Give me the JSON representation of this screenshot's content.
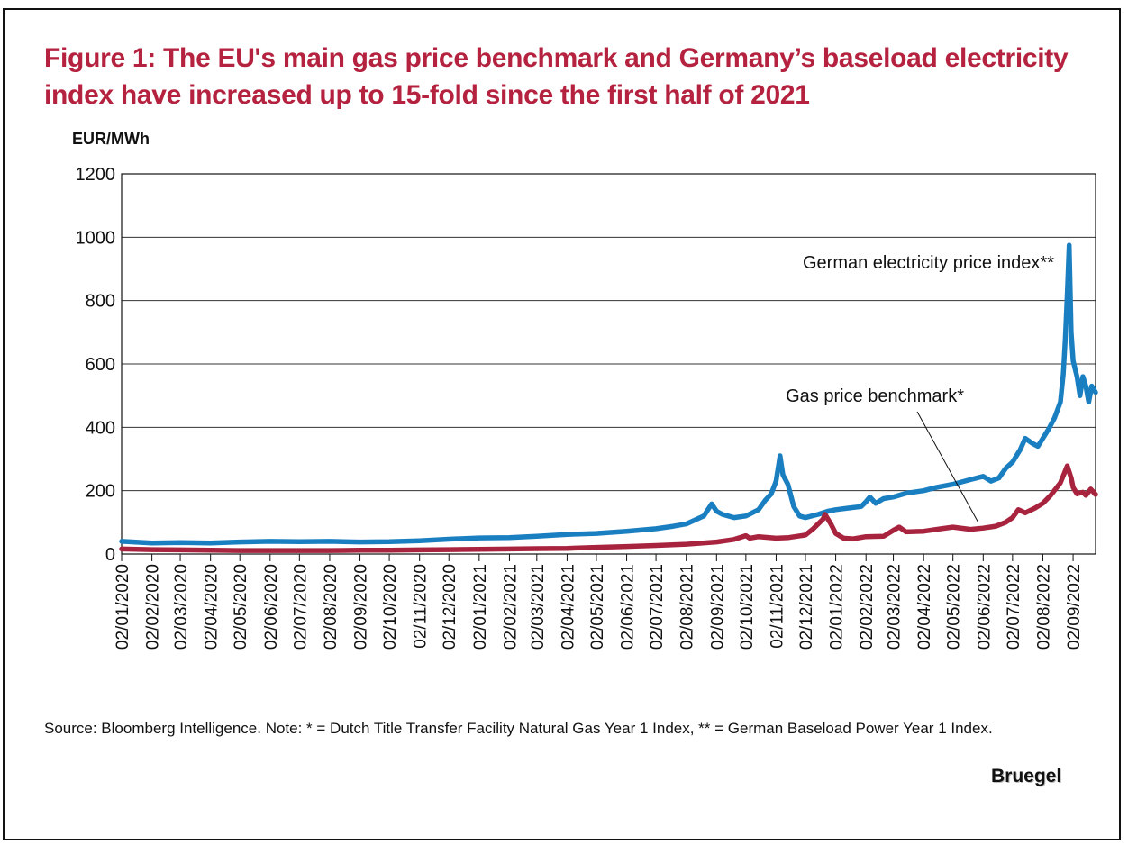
{
  "title": "Figure 1: The EU's main gas price benchmark and Germany’s baseload electricity index have increased up to 15-fold since the first half of 2021",
  "unit_label": "EUR/MWh",
  "source_note": "Source: Bloomberg Intelligence. Note: * = Dutch Title Transfer Facility Natural Gas Year 1 Index, ** = German Baseload Power Year 1 Index.",
  "brand": "Bruegel",
  "chart_data": {
    "type": "line",
    "ylim": [
      0,
      1200
    ],
    "yticks": [
      0,
      200,
      400,
      600,
      800,
      1000,
      1200
    ],
    "grid": true,
    "xlim": [
      "2020-01-02",
      "2022-09-25"
    ],
    "xticks": [
      "02/01/2020",
      "02/02/2020",
      "02/03/2020",
      "02/04/2020",
      "02/05/2020",
      "02/06/2020",
      "02/07/2020",
      "02/08/2020",
      "02/09/2020",
      "02/10/2020",
      "02/11/2020",
      "02/12/2020",
      "02/01/2021",
      "02/02/2021",
      "02/03/2021",
      "02/04/2021",
      "02/05/2021",
      "02/06/2021",
      "02/07/2021",
      "02/08/2021",
      "02/09/2021",
      "02/10/2021",
      "02/11/2021",
      "02/12/2021",
      "02/01/2022",
      "02/02/2022",
      "02/03/2022",
      "02/04/2022",
      "02/05/2022",
      "02/06/2022",
      "02/07/2022",
      "02/08/2022",
      "02/09/2022"
    ],
    "series": [
      {
        "name": "German electricity price index**",
        "color": "#1a7fc1",
        "points": [
          [
            "2020-01-02",
            40
          ],
          [
            "2020-02-02",
            35
          ],
          [
            "2020-03-02",
            36
          ],
          [
            "2020-04-02",
            35
          ],
          [
            "2020-05-02",
            38
          ],
          [
            "2020-06-02",
            40
          ],
          [
            "2020-07-02",
            39
          ],
          [
            "2020-08-02",
            40
          ],
          [
            "2020-09-02",
            38
          ],
          [
            "2020-10-02",
            39
          ],
          [
            "2020-11-02",
            42
          ],
          [
            "2020-12-02",
            47
          ],
          [
            "2021-01-02",
            51
          ],
          [
            "2021-02-02",
            52
          ],
          [
            "2021-03-02",
            56
          ],
          [
            "2021-04-02",
            62
          ],
          [
            "2021-05-02",
            65
          ],
          [
            "2021-06-02",
            72
          ],
          [
            "2021-07-02",
            80
          ],
          [
            "2021-07-20",
            88
          ],
          [
            "2021-08-02",
            95
          ],
          [
            "2021-08-20",
            120
          ],
          [
            "2021-08-28",
            158
          ],
          [
            "2021-09-02",
            135
          ],
          [
            "2021-09-08",
            125
          ],
          [
            "2021-09-20",
            115
          ],
          [
            "2021-10-02",
            120
          ],
          [
            "2021-10-15",
            140
          ],
          [
            "2021-10-22",
            170
          ],
          [
            "2021-10-28",
            190
          ],
          [
            "2021-11-02",
            230
          ],
          [
            "2021-11-06",
            310
          ],
          [
            "2021-11-09",
            250
          ],
          [
            "2021-11-14",
            220
          ],
          [
            "2021-11-20",
            150
          ],
          [
            "2021-11-26",
            120
          ],
          [
            "2021-12-02",
            115
          ],
          [
            "2021-12-15",
            125
          ],
          [
            "2021-12-25",
            135
          ],
          [
            "2022-01-02",
            140
          ],
          [
            "2022-01-15",
            145
          ],
          [
            "2022-01-28",
            150
          ],
          [
            "2022-02-02",
            165
          ],
          [
            "2022-02-06",
            180
          ],
          [
            "2022-02-12",
            160
          ],
          [
            "2022-02-20",
            175
          ],
          [
            "2022-03-02",
            180
          ],
          [
            "2022-03-15",
            192
          ],
          [
            "2022-04-02",
            200
          ],
          [
            "2022-04-15",
            210
          ],
          [
            "2022-05-02",
            220
          ],
          [
            "2022-05-20",
            235
          ],
          [
            "2022-06-02",
            245
          ],
          [
            "2022-06-10",
            230
          ],
          [
            "2022-06-18",
            240
          ],
          [
            "2022-06-25",
            270
          ],
          [
            "2022-07-02",
            290
          ],
          [
            "2022-07-10",
            330
          ],
          [
            "2022-07-15",
            365
          ],
          [
            "2022-07-22",
            350
          ],
          [
            "2022-07-28",
            340
          ],
          [
            "2022-08-02",
            365
          ],
          [
            "2022-08-08",
            395
          ],
          [
            "2022-08-14",
            430
          ],
          [
            "2022-08-20",
            480
          ],
          [
            "2022-08-23",
            570
          ],
          [
            "2022-08-25",
            680
          ],
          [
            "2022-08-27",
            820
          ],
          [
            "2022-08-29",
            975
          ],
          [
            "2022-08-31",
            700
          ],
          [
            "2022-09-02",
            610
          ],
          [
            "2022-09-06",
            560
          ],
          [
            "2022-09-09",
            500
          ],
          [
            "2022-09-12",
            560
          ],
          [
            "2022-09-15",
            530
          ],
          [
            "2022-09-18",
            480
          ],
          [
            "2022-09-21",
            530
          ],
          [
            "2022-09-25",
            510
          ]
        ]
      },
      {
        "name": "Gas price benchmark*",
        "color": "#a8233e",
        "points": [
          [
            "2020-01-02",
            16
          ],
          [
            "2020-02-02",
            14
          ],
          [
            "2020-03-02",
            13
          ],
          [
            "2020-04-02",
            12
          ],
          [
            "2020-05-02",
            11
          ],
          [
            "2020-06-02",
            11
          ],
          [
            "2020-07-02",
            11
          ],
          [
            "2020-08-02",
            11
          ],
          [
            "2020-09-02",
            12
          ],
          [
            "2020-10-02",
            12
          ],
          [
            "2020-11-02",
            13
          ],
          [
            "2020-12-02",
            14
          ],
          [
            "2021-01-02",
            15
          ],
          [
            "2021-02-02",
            16
          ],
          [
            "2021-03-02",
            17
          ],
          [
            "2021-04-02",
            18
          ],
          [
            "2021-05-02",
            21
          ],
          [
            "2021-06-02",
            24
          ],
          [
            "2021-07-02",
            27
          ],
          [
            "2021-08-02",
            31
          ],
          [
            "2021-09-02",
            38
          ],
          [
            "2021-09-20",
            46
          ],
          [
            "2021-10-02",
            58
          ],
          [
            "2021-10-06",
            50
          ],
          [
            "2021-10-15",
            55
          ],
          [
            "2021-11-02",
            50
          ],
          [
            "2021-11-15",
            52
          ],
          [
            "2021-12-02",
            60
          ],
          [
            "2021-12-10",
            80
          ],
          [
            "2021-12-20",
            110
          ],
          [
            "2021-12-22",
            125
          ],
          [
            "2021-12-28",
            95
          ],
          [
            "2022-01-02",
            65
          ],
          [
            "2022-01-10",
            50
          ],
          [
            "2022-01-20",
            48
          ],
          [
            "2022-02-02",
            55
          ],
          [
            "2022-02-20",
            56
          ],
          [
            "2022-03-02",
            75
          ],
          [
            "2022-03-08",
            85
          ],
          [
            "2022-03-15",
            70
          ],
          [
            "2022-04-02",
            72
          ],
          [
            "2022-04-20",
            80
          ],
          [
            "2022-05-02",
            85
          ],
          [
            "2022-05-20",
            78
          ],
          [
            "2022-06-02",
            82
          ],
          [
            "2022-06-15",
            88
          ],
          [
            "2022-06-25",
            100
          ],
          [
            "2022-07-02",
            115
          ],
          [
            "2022-07-08",
            140
          ],
          [
            "2022-07-15",
            130
          ],
          [
            "2022-07-25",
            145
          ],
          [
            "2022-08-02",
            160
          ],
          [
            "2022-08-10",
            185
          ],
          [
            "2022-08-20",
            225
          ],
          [
            "2022-08-27",
            278
          ],
          [
            "2022-08-31",
            240
          ],
          [
            "2022-09-02",
            210
          ],
          [
            "2022-09-06",
            190
          ],
          [
            "2022-09-12",
            195
          ],
          [
            "2022-09-15",
            185
          ],
          [
            "2022-09-20",
            205
          ],
          [
            "2022-09-25",
            188
          ]
        ]
      }
    ],
    "annotations": [
      {
        "text": "German electricity price index**",
        "series": 0
      },
      {
        "text": "Gas price benchmark*",
        "series": 1,
        "pointer_to": [
          "2022-05-28",
          82
        ]
      }
    ]
  }
}
